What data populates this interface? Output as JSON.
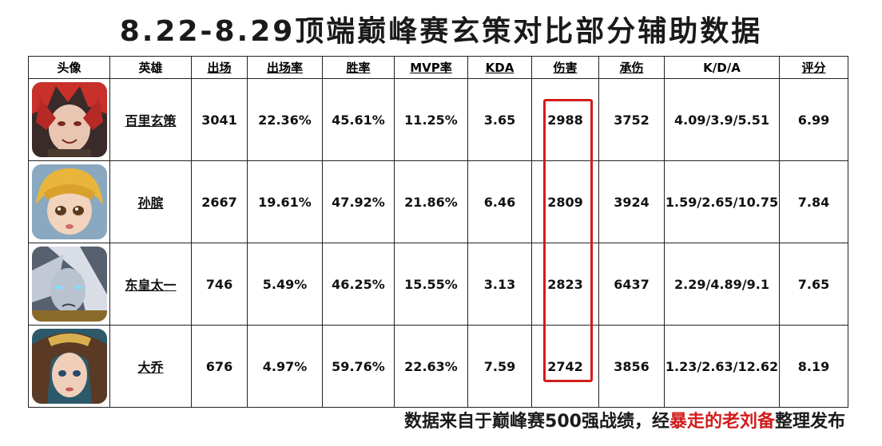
{
  "title": "8.22-8.29顶端巅峰赛玄策对比部分辅助数据",
  "headers": {
    "avatar": "头像",
    "hero": "英雄",
    "appearances": "出场",
    "pick_rate": "出场率",
    "win_rate": "胜率",
    "mvp_rate": "MVP率",
    "kda": "KDA",
    "damage": "伤害",
    "damage_taken": "承伤",
    "kda_detail": "K/D/A",
    "rating": "评分"
  },
  "rows": [
    {
      "hero": "百里玄策",
      "appearances": "3041",
      "pick_rate": "22.36%",
      "win_rate": "45.61%",
      "mvp_rate": "11.25%",
      "kda": "3.65",
      "damage": "2988",
      "damage_taken": "3752",
      "kda_detail": "4.09/3.9/5.51",
      "rating": "6.99"
    },
    {
      "hero": "孙膑",
      "appearances": "2667",
      "pick_rate": "19.61%",
      "win_rate": "47.92%",
      "mvp_rate": "21.86%",
      "kda": "6.46",
      "damage": "2809",
      "damage_taken": "3924",
      "kda_detail": "1.59/2.65/10.75",
      "rating": "7.84"
    },
    {
      "hero": "东皇太一",
      "appearances": "746",
      "pick_rate": "5.49%",
      "win_rate": "46.25%",
      "mvp_rate": "15.55%",
      "kda": "3.13",
      "damage": "2823",
      "damage_taken": "6437",
      "kda_detail": "2.29/4.89/9.1",
      "rating": "7.65"
    },
    {
      "hero": "大乔",
      "appearances": "676",
      "pick_rate": "4.97%",
      "win_rate": "59.76%",
      "mvp_rate": "22.63%",
      "kda": "7.59",
      "damage": "2742",
      "damage_taken": "3856",
      "kda_detail": "1.23/2.63/12.62",
      "rating": "8.19"
    }
  ],
  "footer": {
    "prefix": "数据来自于巅峰赛500强战绩，经",
    "author": "暴走的老刘备",
    "suffix": "整理发布"
  },
  "colors": {
    "highlight": "#d21c1c",
    "link_blue": "#1a1ab8",
    "link_purple": "#6b1f7a"
  }
}
